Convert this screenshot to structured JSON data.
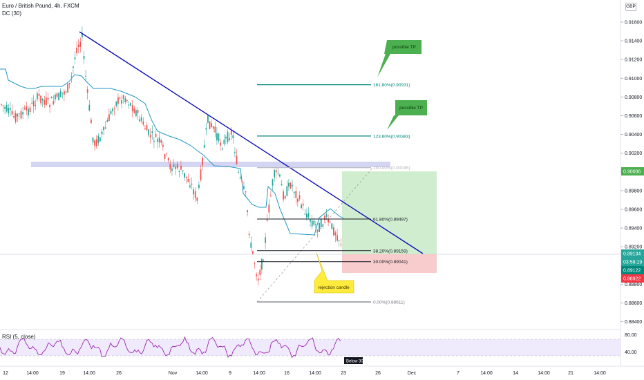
{
  "header": {
    "title": "Euro / British Pound, 4h, FXCM",
    "indicator": "DC (30)",
    "currency_button": "GBP"
  },
  "rsi": {
    "title": "RSI (5, close)",
    "levels": [
      "80.00",
      "40.00"
    ],
    "annotation": "Below 30"
  },
  "price_axis": {
    "ticks": [
      "0.91600",
      "0.91400",
      "0.91200",
      "0.91000",
      "0.90800",
      "0.90600",
      "0.90400",
      "0.90200",
      "0.90000",
      "0.89800",
      "0.89600",
      "0.89400",
      "0.89200",
      "0.89000",
      "0.88800",
      "0.88600",
      "0.88400"
    ],
    "last_price_tag": "0.89134",
    "countdown_tag": "03:58:19",
    "green_tag": "0.89122",
    "red_tag": "0.88922",
    "target_tag": "0.90006"
  },
  "time_axis": {
    "labels": [
      "12",
      "14:00",
      "19",
      "14:00",
      "26",
      "Nov",
      "14:00",
      "9",
      "14:00",
      "16",
      "14:00",
      "23",
      "26",
      "Dec",
      "7",
      "14:00",
      "14",
      "14:00",
      "21",
      "14:00"
    ]
  },
  "fibonacci": {
    "levels": [
      {
        "label": "161.80%(0.90931)",
        "value": 0.90931,
        "color": "#00897b"
      },
      {
        "label": "123.60%(0.90383)",
        "value": 0.90383,
        "color": "#00897b"
      },
      {
        "label": "100.00%(0.90045)",
        "value": 0.90045,
        "color": "#b2b5be"
      },
      {
        "label": "61.80%(0.89497)",
        "value": 0.89497,
        "color": "#131722"
      },
      {
        "label": "38.20%(0.89159)",
        "value": 0.89159,
        "color": "#131722"
      },
      {
        "label": "30.00%(0.89041)",
        "value": 0.89041,
        "color": "#131722"
      },
      {
        "label": "0.00%(0.88611)",
        "value": 0.88611,
        "color": "#787b86"
      }
    ]
  },
  "callouts": {
    "tp1": "possible TP",
    "tp2": "possible TP",
    "rejection": "rejection candle"
  },
  "colors": {
    "up": "#26a69a",
    "down": "#ef5350",
    "trendline": "#0d0db8",
    "donchian": "#2196c4",
    "rsi": "#9c27b0",
    "callout_green": "#4caf50",
    "callout_yellow": "#ffeb3b"
  }
}
